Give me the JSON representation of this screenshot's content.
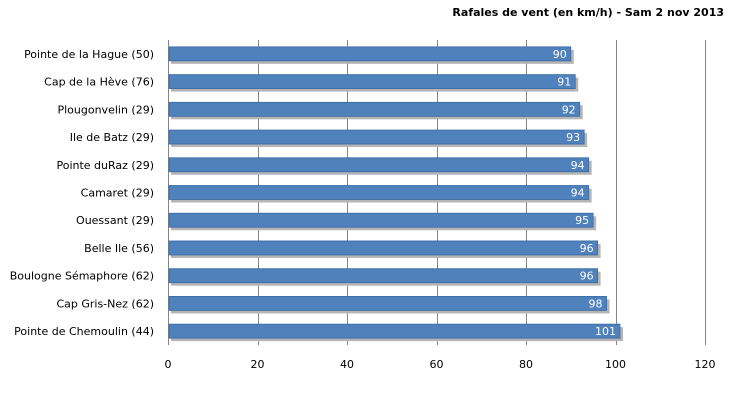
{
  "chart_data": {
    "type": "bar",
    "orientation": "horizontal",
    "title": "Rafales de vent (en km/h) - Sam 2 nov 2013",
    "categories": [
      "Pointe de la Hague (50)",
      "Cap de la Hève (76)",
      "Plougonvelin (29)",
      "Ile de Batz (29)",
      "Pointe duRaz (29)",
      "Camaret (29)",
      "Ouessant (29)",
      "Belle Ile (56)",
      "Boulogne Sémaphore (62)",
      "Cap Gris-Nez (62)",
      "Pointe de Chemoulin (44)"
    ],
    "values": [
      90,
      91,
      92,
      93,
      94,
      94,
      95,
      96,
      96,
      98,
      101
    ],
    "data_labels": [
      "90",
      "91",
      "92",
      "93",
      "94",
      "94",
      "95",
      "96",
      "96",
      "98",
      "101"
    ],
    "xlim": [
      0,
      120
    ],
    "xticks": [
      0,
      20,
      40,
      60,
      80,
      100,
      120
    ],
    "xtick_labels": [
      "0",
      "20",
      "40",
      "60",
      "80",
      "100",
      "120"
    ],
    "xlabel": "",
    "ylabel": "",
    "grid": "vertical",
    "legend": "none",
    "colors": {
      "bar": "#4f81bd",
      "bar_edge": "#3a6aa3",
      "grid": "#868686",
      "shadow": "#b5b5b5"
    }
  }
}
